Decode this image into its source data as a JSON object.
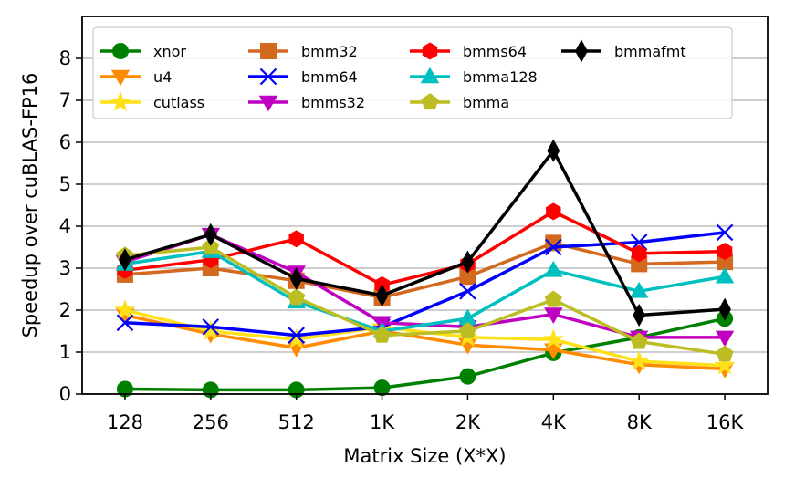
{
  "chart_data": {
    "type": "line",
    "title": "",
    "xlabel": "Matrix Size (X*X)",
    "ylabel": "Speedup over cuBLAS-FP16",
    "categories": [
      "128",
      "256",
      "512",
      "1K",
      "2K",
      "4K",
      "8K",
      "16K"
    ],
    "ylim": [
      0,
      9
    ],
    "yticks": [
      0,
      1,
      2,
      3,
      4,
      5,
      6,
      7,
      8
    ],
    "grid": "horizontal",
    "legend_position": "top-left",
    "legend_columns": 4,
    "series": [
      {
        "name": "xnor",
        "color": "#008000",
        "marker": "circle",
        "values": [
          0.12,
          0.1,
          0.1,
          0.15,
          0.42,
          0.98,
          1.35,
          1.8
        ]
      },
      {
        "name": "u4",
        "color": "#ff8c00",
        "marker": "triangle-down",
        "values": [
          1.88,
          1.43,
          1.1,
          1.5,
          1.17,
          1.05,
          0.7,
          0.6
        ]
      },
      {
        "name": "cutlass",
        "color": "#ffe119",
        "marker": "star",
        "values": [
          2.0,
          1.5,
          1.3,
          1.6,
          1.35,
          1.3,
          0.78,
          0.68
        ]
      },
      {
        "name": "bmm32",
        "color": "#d2691e",
        "marker": "square",
        "values": [
          2.85,
          3.0,
          2.7,
          2.3,
          2.8,
          3.6,
          3.1,
          3.15
        ]
      },
      {
        "name": "bmm64",
        "color": "#0000ff",
        "marker": "x",
        "values": [
          1.7,
          1.6,
          1.4,
          1.6,
          2.45,
          3.5,
          3.62,
          3.85
        ]
      },
      {
        "name": "bmms32",
        "color": "#c000c0",
        "marker": "triangle-down",
        "values": [
          3.15,
          3.8,
          2.9,
          1.7,
          1.6,
          1.9,
          1.35,
          1.35
        ]
      },
      {
        "name": "bmms64",
        "color": "#ff0000",
        "marker": "hexagon",
        "values": [
          2.95,
          3.2,
          3.7,
          2.6,
          3.1,
          4.35,
          3.35,
          3.4
        ]
      },
      {
        "name": "bmma128",
        "color": "#00bfbf",
        "marker": "triangle-up",
        "values": [
          3.1,
          3.4,
          2.2,
          1.5,
          1.8,
          2.95,
          2.45,
          2.8
        ]
      },
      {
        "name": "bmma",
        "color": "#bcbd22",
        "marker": "pentagon",
        "values": [
          3.3,
          3.5,
          2.3,
          1.4,
          1.5,
          2.25,
          1.25,
          0.95
        ]
      },
      {
        "name": "bmmafmt",
        "color": "#000000",
        "marker": "diamond",
        "values": [
          3.2,
          3.8,
          2.75,
          2.35,
          3.15,
          5.8,
          1.88,
          2.02
        ]
      }
    ]
  }
}
